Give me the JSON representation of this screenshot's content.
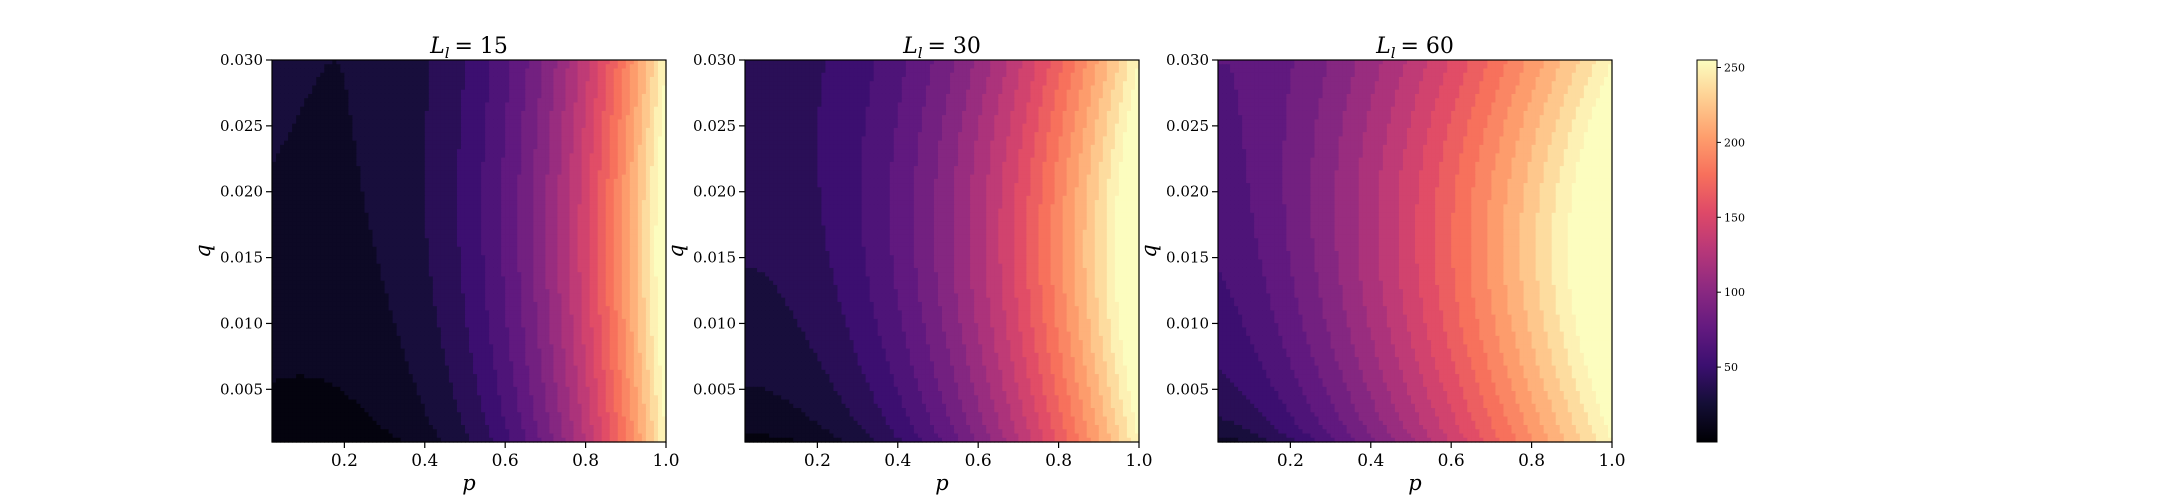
{
  "chart_data": {
    "type": "heatmap",
    "plot": "filled-contour",
    "colormap": "magma",
    "xlabel": "p",
    "ylabel": "q",
    "xlim": [
      0.02,
      1.0
    ],
    "ylim": [
      0.001,
      0.03
    ],
    "x_ticks": [
      0.2,
      0.4,
      0.6,
      0.8,
      1.0
    ],
    "x_tick_labels": [
      "0.2",
      "0.4",
      "0.6",
      "0.8",
      "1.0"
    ],
    "y_ticks": [
      0.005,
      0.01,
      0.015,
      0.02,
      0.025,
      0.03
    ],
    "y_tick_labels": [
      "0.005",
      "0.010",
      "0.015",
      "0.020",
      "0.025",
      "0.030"
    ],
    "levels": 22,
    "panels": [
      {
        "title_symbol": "L",
        "title_subscript": "l",
        "title_value": "= 15",
        "L_l": 15,
        "max_value": 250,
        "corner_min": 0
      },
      {
        "title_symbol": "L",
        "title_subscript": "l",
        "title_value": "= 30",
        "L_l": 30,
        "max_value": 250,
        "corner_min": 0
      },
      {
        "title_symbol": "L",
        "title_subscript": "l",
        "title_value": "= 60",
        "L_l": 60,
        "max_value": 250,
        "corner_min": 0
      }
    ],
    "colorbar": {
      "min": 0,
      "max": 255,
      "ticks": [
        50,
        100,
        150,
        200,
        250
      ],
      "tick_labels": [
        "50",
        "100",
        "150",
        "200",
        "250"
      ]
    }
  }
}
